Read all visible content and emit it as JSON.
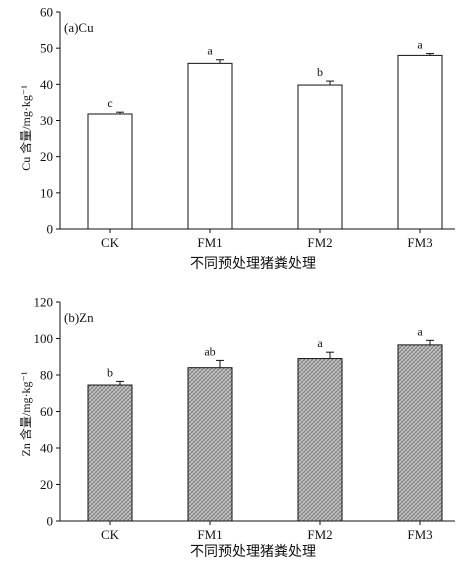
{
  "chart_data": [
    {
      "type": "bar",
      "panel_label": "(a)Cu",
      "categories": [
        "CK",
        "FM1",
        "FM2",
        "FM3"
      ],
      "values": [
        31.8,
        45.8,
        39.8,
        48.0
      ],
      "errors": [
        0.5,
        1.0,
        1.1,
        0.5
      ],
      "significance": [
        "c",
        "a",
        "b",
        "a"
      ],
      "xlabel": "不同预处理猪粪处理",
      "ylabel": "Cu 含量/mg·kg⁻¹",
      "ylim": [
        0,
        60
      ],
      "yticks": [
        0,
        10,
        20,
        30,
        40,
        50,
        60
      ],
      "bar_fill": "#ffffff",
      "grid": false
    },
    {
      "type": "bar",
      "panel_label": "(b)Zn",
      "categories": [
        "CK",
        "FM1",
        "FM2",
        "FM3"
      ],
      "values": [
        74.5,
        84.0,
        89.0,
        96.5
      ],
      "errors": [
        2.0,
        4.0,
        3.5,
        2.5
      ],
      "significance": [
        "b",
        "ab",
        "a",
        "a"
      ],
      "xlabel": "不同预处理猪粪处理",
      "ylabel": "Zn 含量/mg·kg⁻¹",
      "ylim": [
        0,
        120
      ],
      "yticks": [
        0,
        20,
        40,
        60,
        80,
        100,
        120
      ],
      "bar_fill": "hatched-gray",
      "grid": false
    }
  ]
}
